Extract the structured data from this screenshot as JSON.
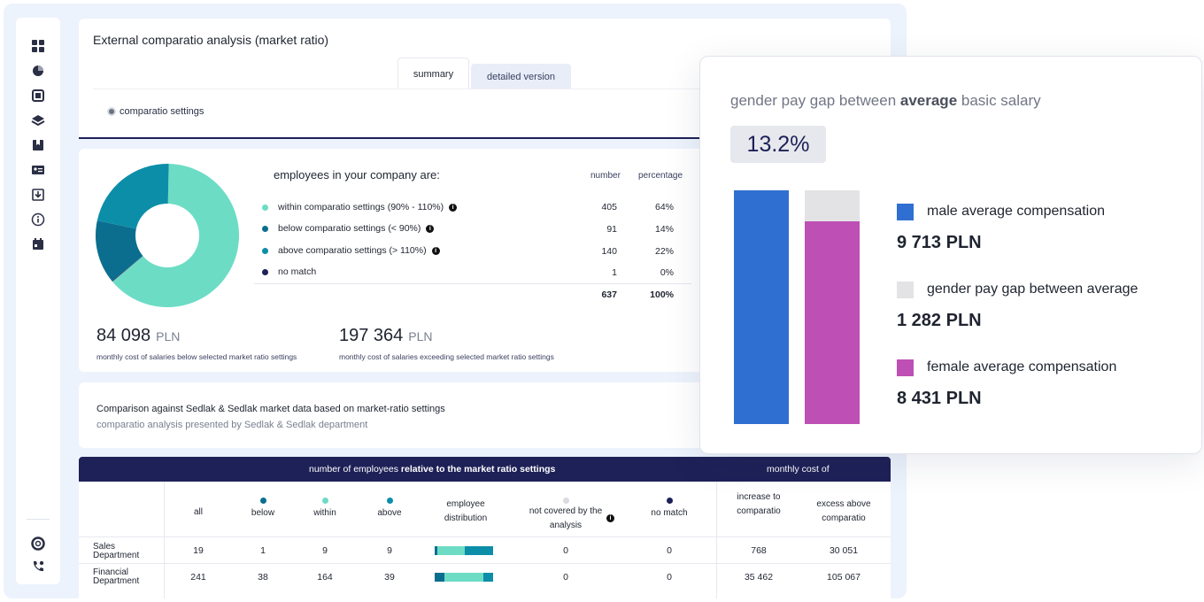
{
  "app": {
    "title": "External comparatio analysis (market ratio)",
    "tabs": [
      {
        "label": "summary",
        "active": true
      },
      {
        "label": "detailed version",
        "active": false
      }
    ],
    "settings_link": "comparatio settings"
  },
  "sidebar_icons": [
    "dashboard-icon",
    "pie-chart-icon",
    "expand-icon",
    "layers-icon",
    "bookmark-icon",
    "id-card-icon",
    "download-icon",
    "info-icon",
    "calendar-icon",
    "lifebuoy-icon",
    "phone-icon"
  ],
  "summary": {
    "heading": "employees in your company are:",
    "col_number": "number",
    "col_percentage": "percentage",
    "rows": [
      {
        "label": "within comparatio settings (90% - 110%)",
        "number": "405",
        "percentage": "64%",
        "color": "#6ddcc5",
        "info": true
      },
      {
        "label": "below comparatio settings (< 90%)",
        "number": "91",
        "percentage": "14%",
        "color": "#0b6e8f",
        "info": true
      },
      {
        "label": "above comparatio settings (> 110%)",
        "number": "140",
        "percentage": "22%",
        "color": "#0c8ea9",
        "info": true
      },
      {
        "label": "no match",
        "number": "1",
        "percentage": "0%",
        "color": "#1e2157",
        "info": false
      }
    ],
    "total_number": "637",
    "total_percentage": "100%",
    "cost_below": {
      "value": "84 098",
      "unit": "PLN",
      "caption": "monthly cost of salaries below selected market ratio settings"
    },
    "cost_above": {
      "value": "197 364",
      "unit": "PLN",
      "caption": "monthly cost of salaries exceeding selected market ratio settings"
    }
  },
  "chart_data": {
    "type": "pie",
    "categories": [
      "within comparatio settings (90% - 110%)",
      "below comparatio settings (< 90%)",
      "above comparatio settings (> 110%)",
      "no match"
    ],
    "values": [
      405,
      91,
      140,
      1
    ],
    "colors": [
      "#6ddcc5",
      "#0b6e8f",
      "#0c8ea9",
      "#1e2157"
    ]
  },
  "comparison": {
    "title": "Comparison against Sedlak & Sedlak market data based on market-ratio settings",
    "subtitle": "comparatio analysis presented by Sedlak & Sedlak department"
  },
  "table": {
    "group1_prefix": "number of employees ",
    "group1_bold": "relative to the market ratio settings",
    "group2": "monthly cost of",
    "headers": {
      "all": "all",
      "below": "below",
      "within": "within",
      "above": "above",
      "distribution": "employee distribution",
      "not_covered": "not covered by the analysis",
      "no_match": "no match",
      "increase": "increase to comparatio",
      "excess": "excess above comparatio"
    },
    "rows": [
      {
        "dept": "Sales Department",
        "all": "19",
        "below": "1",
        "within": "9",
        "above": "9",
        "dist": [
          0.05,
          0.47,
          0.48
        ],
        "not_covered": "0",
        "no_match": "0",
        "increase": "768",
        "excess": "30 051"
      },
      {
        "dept": "Financial Department",
        "all": "241",
        "below": "38",
        "within": "164",
        "above": "39",
        "dist": [
          0.16,
          0.68,
          0.16
        ],
        "not_covered": "0",
        "no_match": "0",
        "increase": "35 462",
        "excess": "105 067"
      }
    ]
  },
  "pay_gap": {
    "title_prefix": "gender pay gap between ",
    "title_bold": "average",
    "title_suffix": " basic salary",
    "gap_percent": "13.2%",
    "male_label": "male average compensation",
    "male_value": "9 713 PLN",
    "gap_label": "gender pay gap between average",
    "gap_value": "1 282 PLN",
    "female_label": "female average compensation",
    "female_value": "8 431 PLN",
    "male_amount": 9713,
    "female_amount": 8431,
    "colors": {
      "male": "#2f6fd1",
      "gap": "#e3e3e6",
      "female": "#be4fb5"
    }
  }
}
